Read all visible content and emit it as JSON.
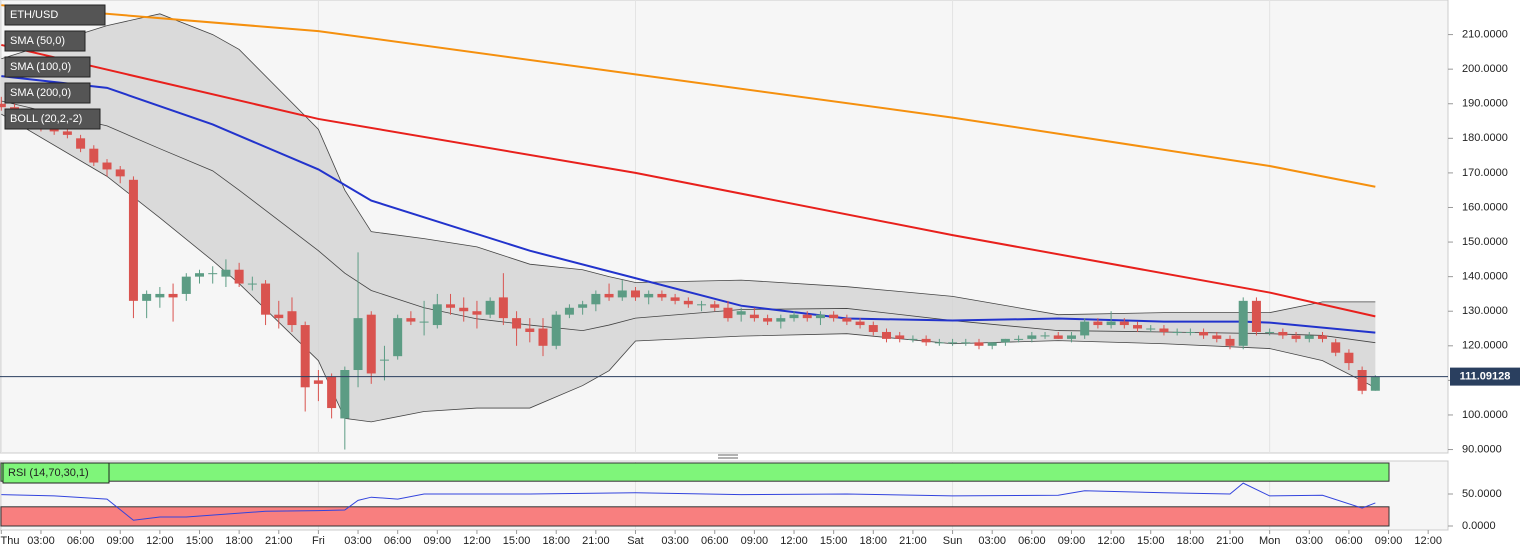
{
  "chart_data": [
    {
      "type": "candlestick",
      "name": "ETH/USD",
      "bull_color": "#5c9c84",
      "bear_color": "#d9534f",
      "xlim": [
        -0.1,
        109.5
      ],
      "ylim": [
        89,
        220
      ],
      "grid": true,
      "last_price": 111.09128,
      "last_price_color": "#2a3f5f",
      "yticks": [
        {
          "value": 90,
          "label": "90.0000"
        },
        {
          "value": 100,
          "label": "100.0000"
        },
        {
          "value": 110,
          "label": "110.0000"
        },
        {
          "value": 120,
          "label": "120.0000"
        },
        {
          "value": 130,
          "label": "130.0000"
        },
        {
          "value": 140,
          "label": "140.0000"
        },
        {
          "value": 150,
          "label": "150.0000"
        },
        {
          "value": 160,
          "label": "160.0000"
        },
        {
          "value": 170,
          "label": "170.0000"
        },
        {
          "value": 180,
          "label": "180.0000"
        },
        {
          "value": 190,
          "label": "190.0000"
        },
        {
          "value": 200,
          "label": "200.0000"
        },
        {
          "value": 210,
          "label": "210.0000"
        }
      ],
      "xticks": [
        {
          "value": 0,
          "label": "Thu"
        },
        {
          "value": 3,
          "label": "03:00"
        },
        {
          "value": 6,
          "label": "06:00"
        },
        {
          "value": 9,
          "label": "09:00"
        },
        {
          "value": 12,
          "label": "12:00"
        },
        {
          "value": 15,
          "label": "15:00"
        },
        {
          "value": 18,
          "label": "18:00"
        },
        {
          "value": 21,
          "label": "21:00"
        },
        {
          "value": 24,
          "label": "Fri"
        },
        {
          "value": 27,
          "label": "03:00"
        },
        {
          "value": 30,
          "label": "06:00"
        },
        {
          "value": 33,
          "label": "09:00"
        },
        {
          "value": 36,
          "label": "12:00"
        },
        {
          "value": 39,
          "label": "15:00"
        },
        {
          "value": 42,
          "label": "18:00"
        },
        {
          "value": 45,
          "label": "21:00"
        },
        {
          "value": 48,
          "label": "Sat"
        },
        {
          "value": 51,
          "label": "03:00"
        },
        {
          "value": 54,
          "label": "06:00"
        },
        {
          "value": 57,
          "label": "09:00"
        },
        {
          "value": 60,
          "label": "12:00"
        },
        {
          "value": 63,
          "label": "15:00"
        },
        {
          "value": 66,
          "label": "18:00"
        },
        {
          "value": 69,
          "label": "21:00"
        },
        {
          "value": 72,
          "label": "Sun"
        },
        {
          "value": 75,
          "label": "03:00"
        },
        {
          "value": 78,
          "label": "06:00"
        },
        {
          "value": 81,
          "label": "09:00"
        },
        {
          "value": 84,
          "label": "12:00"
        },
        {
          "value": 87,
          "label": "15:00"
        },
        {
          "value": 90,
          "label": "18:00"
        },
        {
          "value": 93,
          "label": "21:00"
        },
        {
          "value": 96,
          "label": "Mon"
        },
        {
          "value": 99,
          "label": "03:00"
        },
        {
          "value": 102,
          "label": "06:00"
        },
        {
          "value": 105,
          "label": "09:00"
        },
        {
          "value": 108,
          "label": "12:00"
        }
      ],
      "x": [
        0,
        1,
        2,
        3,
        4,
        5,
        6,
        7,
        8,
        9,
        10,
        11,
        12,
        13,
        14,
        15,
        16,
        17,
        18,
        19,
        20,
        21,
        22,
        23,
        24,
        25,
        26,
        27,
        28,
        29,
        30,
        31,
        32,
        33,
        34,
        35,
        36,
        37,
        38,
        39,
        40,
        41,
        42,
        43,
        44,
        45,
        46,
        47,
        48,
        49,
        50,
        51,
        52,
        53,
        54,
        55,
        56,
        57,
        58,
        59,
        60,
        61,
        62,
        63,
        64,
        65,
        66,
        67,
        68,
        69,
        70,
        71,
        72,
        73,
        74,
        75,
        76,
        77,
        78,
        79,
        80,
        81,
        82,
        83,
        84,
        85,
        86,
        87,
        88,
        89,
        90,
        91,
        92,
        93,
        94,
        95,
        96,
        97,
        98,
        99,
        100,
        101,
        102,
        103,
        104
      ],
      "ohlc": [
        [
          190,
          192,
          188,
          189
        ],
        [
          189,
          190,
          185,
          186
        ],
        [
          186,
          187,
          183,
          184
        ],
        [
          184,
          185,
          182,
          183
        ],
        [
          183,
          184,
          181,
          182
        ],
        [
          182,
          183,
          180,
          181
        ],
        [
          180,
          181,
          176,
          177
        ],
        [
          177,
          178,
          172,
          173
        ],
        [
          173,
          174,
          169,
          171
        ],
        [
          171,
          172,
          167,
          169
        ],
        [
          168,
          169,
          128,
          133
        ],
        [
          133,
          136,
          128,
          135
        ],
        [
          134,
          137,
          131,
          135
        ],
        [
          135,
          138,
          127,
          134
        ],
        [
          135,
          141,
          133,
          140
        ],
        [
          140,
          142,
          138,
          141
        ],
        [
          141,
          143,
          138,
          141
        ],
        [
          140,
          145,
          137,
          142
        ],
        [
          142,
          144,
          137,
          138
        ],
        [
          138,
          140,
          136,
          138
        ],
        [
          138,
          139,
          126,
          129
        ],
        [
          129,
          133,
          125,
          128
        ],
        [
          130,
          134,
          124,
          126
        ],
        [
          126,
          127,
          101,
          108
        ],
        [
          110,
          113,
          104,
          109
        ],
        [
          111,
          112,
          99,
          102
        ],
        [
          99,
          114,
          90,
          113
        ],
        [
          113,
          147,
          108,
          128
        ],
        [
          129,
          130,
          109,
          112
        ],
        [
          116,
          120,
          110,
          116
        ],
        [
          117,
          129,
          116,
          128
        ],
        [
          128,
          130,
          126,
          127
        ],
        [
          127,
          133,
          123,
          127
        ],
        [
          126,
          135,
          125,
          132
        ],
        [
          132,
          135,
          129,
          131
        ],
        [
          131,
          134,
          127,
          130
        ],
        [
          130,
          133,
          125,
          129
        ],
        [
          129,
          134,
          128,
          133
        ],
        [
          134,
          141,
          126,
          128
        ],
        [
          128,
          130,
          120,
          125
        ],
        [
          125,
          128,
          121,
          124
        ],
        [
          125,
          128,
          117,
          120
        ],
        [
          120,
          130,
          119,
          129
        ],
        [
          129,
          132,
          128,
          131
        ],
        [
          131,
          133,
          129,
          132
        ],
        [
          132,
          136,
          130,
          135
        ],
        [
          135,
          138,
          133,
          134
        ],
        [
          134,
          139,
          133,
          136
        ],
        [
          136,
          137,
          133,
          134
        ],
        [
          134,
          136,
          132,
          135
        ],
        [
          135,
          136,
          133,
          134
        ],
        [
          134,
          135,
          132,
          133
        ],
        [
          133,
          134,
          131,
          132
        ],
        [
          132,
          133,
          130,
          132
        ],
        [
          132,
          133,
          130,
          131
        ],
        [
          131,
          133,
          127,
          128
        ],
        [
          129,
          131,
          127,
          130
        ],
        [
          129,
          131,
          127,
          128
        ],
        [
          128,
          129,
          126,
          127
        ],
        [
          127,
          129,
          125,
          128
        ],
        [
          128,
          130,
          127,
          129
        ],
        [
          129,
          130,
          127,
          128
        ],
        [
          128,
          130,
          126,
          129
        ],
        [
          129,
          130,
          127,
          128
        ],
        [
          128,
          129,
          126,
          127
        ],
        [
          127,
          128,
          125,
          126
        ],
        [
          126,
          127,
          123,
          124
        ],
        [
          124,
          125,
          121,
          122
        ],
        [
          123,
          124,
          121,
          122
        ],
        [
          122,
          123,
          121,
          122
        ],
        [
          122,
          123,
          120,
          121
        ],
        [
          121,
          122,
          120,
          121
        ],
        [
          121,
          122,
          120,
          121
        ],
        [
          121,
          122,
          120,
          121
        ],
        [
          121,
          122,
          119,
          120
        ],
        [
          120,
          121,
          119,
          121
        ],
        [
          121,
          122,
          120,
          122
        ],
        [
          122,
          123,
          121,
          122
        ],
        [
          122,
          124,
          121,
          123
        ],
        [
          123,
          124,
          122,
          123
        ],
        [
          123,
          124,
          122,
          122
        ],
        [
          122,
          124,
          121,
          123
        ],
        [
          123,
          128,
          122,
          127
        ],
        [
          127,
          128,
          125,
          126
        ],
        [
          126,
          130,
          125,
          127
        ],
        [
          127,
          128,
          125,
          126
        ],
        [
          126,
          127,
          124,
          125
        ],
        [
          125,
          126,
          124,
          125
        ],
        [
          125,
          126,
          123,
          124
        ],
        [
          124,
          125,
          123,
          124
        ],
        [
          124,
          125,
          123,
          124
        ],
        [
          124,
          125,
          122,
          123
        ],
        [
          123,
          124,
          121,
          122
        ],
        [
          122,
          123,
          119,
          120
        ],
        [
          120,
          134,
          119,
          133
        ],
        [
          133,
          134,
          123,
          124
        ],
        [
          124,
          125,
          123,
          124
        ],
        [
          124,
          125,
          122,
          123
        ],
        [
          123,
          124,
          121,
          122
        ],
        [
          122,
          124,
          121,
          123
        ],
        [
          123,
          124,
          121,
          122
        ],
        [
          121,
          122,
          117,
          118
        ],
        [
          118,
          119,
          113,
          115
        ],
        [
          113,
          114,
          106,
          107
        ],
        [
          107,
          111.5,
          107,
          111.09128
        ]
      ],
      "overlays": [
        {
          "name": "SMA (50,0)",
          "color": "#2233cc",
          "x": [
            0,
            8,
            16,
            24,
            28,
            40,
            56,
            64,
            72,
            80,
            88,
            94,
            96,
            104
          ],
          "values": [
            198,
            194.6,
            184,
            171,
            162,
            147.5,
            131.6,
            127.9,
            127.3,
            127.9,
            127,
            127,
            126.7,
            123.8
          ]
        },
        {
          "name": "SMA (100,0)",
          "color": "#e8201c",
          "x": [
            0,
            24,
            48,
            72,
            96,
            104
          ],
          "values": [
            207,
            185.6,
            170,
            152,
            135.4,
            128.5
          ]
        },
        {
          "name": "SMA (200,0)",
          "color": "#f5900e",
          "x": [
            0,
            24,
            48,
            72,
            96,
            104
          ],
          "values": [
            218.5,
            211,
            198.5,
            186,
            172,
            166
          ]
        }
      ],
      "bollinger": {
        "name": "BOLL (20,2,-2)",
        "color": "#444444",
        "fill": "#d0d0d0",
        "x": [
          0,
          8,
          12,
          16,
          18,
          24,
          26,
          28,
          32,
          36,
          40,
          44,
          46,
          48,
          56,
          64,
          72,
          80,
          88,
          96,
          100,
          104
        ],
        "upper": [
          203,
          212.6,
          216,
          210,
          205.7,
          182.6,
          165,
          153,
          151,
          148.6,
          143.6,
          142,
          140,
          138.3,
          139,
          137.1,
          134.3,
          129,
          129.6,
          129.6,
          132.7,
          132.7
        ],
        "middle": [
          190.8,
          183.6,
          177,
          170.6,
          165,
          147.5,
          141,
          136,
          131,
          127.8,
          126,
          124.4,
          126,
          128,
          130.5,
          130.8,
          127.3,
          124.4,
          124,
          123.5,
          123,
          120.9
        ],
        "lower": [
          187,
          169,
          157,
          144.6,
          138,
          115.7,
          99,
          98,
          101,
          102,
          102,
          108.5,
          112.8,
          121.4,
          122.8,
          123.5,
          120.6,
          121.5,
          120.6,
          119.2,
          115.7,
          107.9
        ]
      }
    },
    {
      "type": "line",
      "name": "RSI (14,70,30,1)",
      "color": "#3344dd",
      "xlim": [
        -0.1,
        109.5
      ],
      "ylim": [
        0,
        100
      ],
      "overbought": 70,
      "oversold": 30,
      "overbought_color": "#7ff57a",
      "oversold_color": "#f87f7f",
      "yticks": [
        {
          "value": 50,
          "label": "50.0000"
        },
        {
          "value": 0,
          "label": "0.0000"
        }
      ],
      "x": [
        0,
        4,
        8,
        10,
        12,
        14,
        20,
        24,
        26,
        27,
        28,
        30,
        32,
        40,
        48,
        56,
        64,
        72,
        80,
        82,
        88,
        93,
        94,
        96,
        100,
        103,
        104
      ],
      "values": [
        49,
        47,
        42,
        9,
        14,
        14,
        23,
        24,
        25,
        40,
        45,
        42,
        50,
        50,
        52,
        49,
        50,
        47,
        48,
        55,
        52,
        50,
        67,
        47,
        48,
        28,
        36
      ]
    }
  ]
}
